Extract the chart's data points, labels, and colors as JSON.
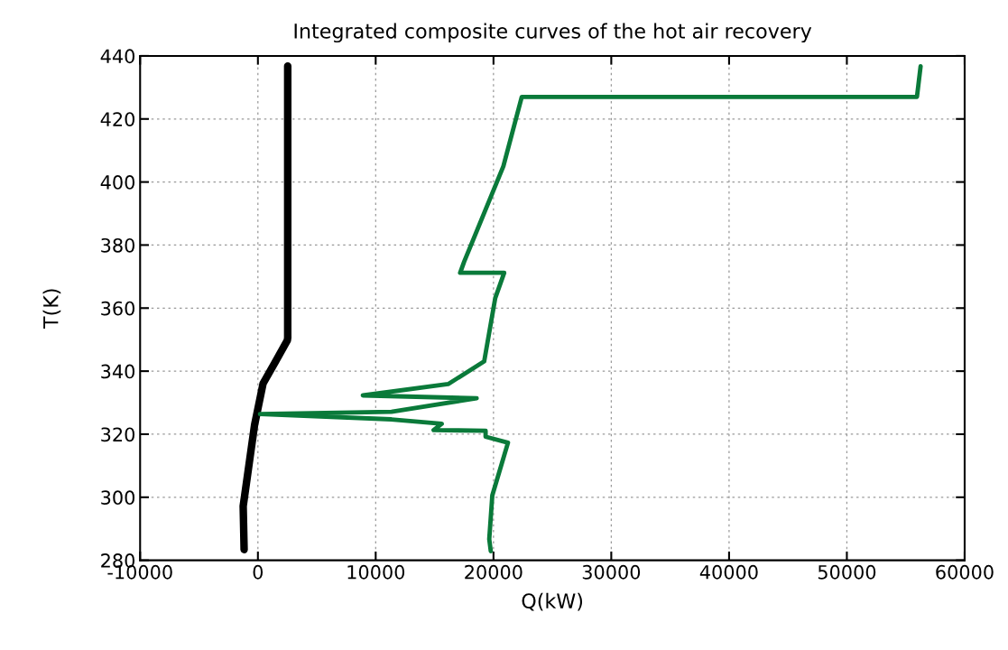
{
  "chart_data": {
    "type": "line",
    "title": "Integrated composite curves of the hot air recovery",
    "xlabel": "Q(kW)",
    "ylabel": "T(K)",
    "xlim": [
      -10000,
      60000
    ],
    "xticks": [
      -10000,
      0,
      10000,
      20000,
      30000,
      40000,
      50000,
      60000
    ],
    "ylim": [
      280,
      440
    ],
    "yticks": [
      280,
      300,
      320,
      340,
      360,
      380,
      400,
      420,
      440
    ],
    "grid": true,
    "marker": "none",
    "line_style": "solid",
    "series": [
      {
        "color": "#000000",
        "x": [
          2530,
          2530,
          2500,
          1430,
          440,
          -280,
          -1250,
          -1170
        ],
        "values": [
          436.8,
          350.6,
          349.8,
          342.6,
          336.1,
          323.0,
          297.2,
          283.4
        ]
      },
      {
        "color": "#0a7a3a",
        "x": [
          56260,
          55950,
          22400,
          20840,
          17510,
          17170,
          20910,
          20150,
          19210,
          16150,
          8910,
          18570,
          11340,
          180,
          11340,
          15610,
          14920,
          19330,
          19330,
          21230,
          19900,
          19640,
          19770
        ],
        "values": [
          436.7,
          427.0,
          427.0,
          405.0,
          374.7,
          371.2,
          371.2,
          363.2,
          343.1,
          335.9,
          332.3,
          331.4,
          327.1,
          326.4,
          324.7,
          323.3,
          321.3,
          321.1,
          319.2,
          317.3,
          300.6,
          286.7,
          282.9
        ]
      }
    ]
  }
}
